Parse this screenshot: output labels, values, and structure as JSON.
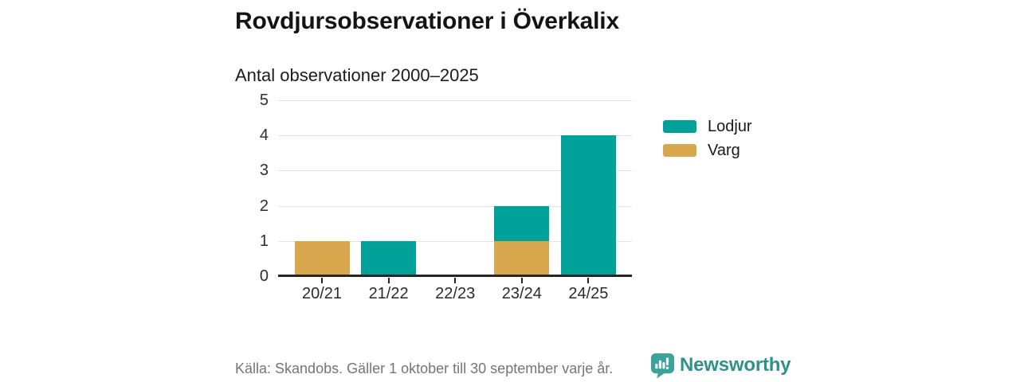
{
  "title": "Rovdjursobservationer i Överkalix",
  "subtitle": "Antal observationer 2000–2025",
  "footer": {
    "source": "Källa: Skandobs. Gäller 1 oktober till 30 september varje år.",
    "brand": "Newsworthy"
  },
  "colors": {
    "lodjur_teal": "#00a198",
    "varg_gold": "#d9a74d",
    "axis": "#262626",
    "grid": "#e3e3e3",
    "muted_text": "#757575",
    "brand_teal": "#2e918c",
    "logo_bubble": "#3ba39c"
  },
  "chart_data": {
    "type": "bar",
    "stacked": true,
    "title": "Rovdjursobservationer i Överkalix",
    "subtitle": "Antal observationer 2000–2025",
    "categories": [
      "20/21",
      "21/22",
      "22/23",
      "23/24",
      "24/25"
    ],
    "series": [
      {
        "name": "Lodjur",
        "color": "#00a198",
        "values": [
          0,
          1,
          0,
          1,
          4
        ]
      },
      {
        "name": "Varg",
        "color": "#d9a74d",
        "values": [
          1,
          0,
          0,
          1,
          0
        ]
      }
    ],
    "stack_bottom_to_top": [
      "Varg",
      "Lodjur"
    ],
    "totals": [
      1,
      1,
      0,
      2,
      4
    ],
    "xlabel": "",
    "ylabel": "",
    "ylim": [
      0,
      5
    ],
    "yticks": [
      0,
      1,
      2,
      3,
      4,
      5
    ],
    "grid": true,
    "legend_position": "right-top"
  }
}
